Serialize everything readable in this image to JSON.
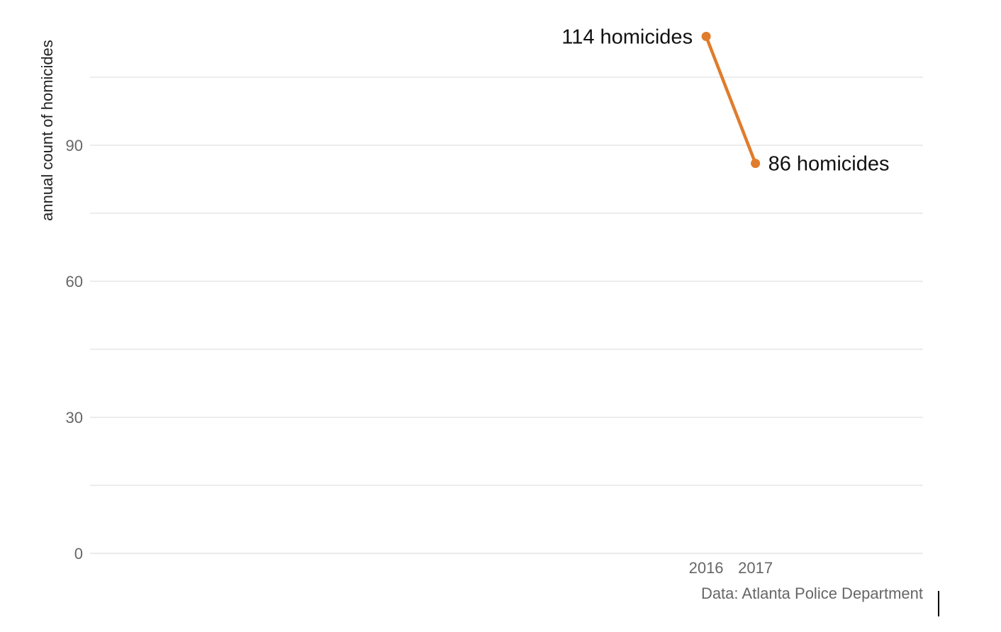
{
  "chart_data": {
    "type": "line",
    "ylabel": "annual count of homicides",
    "xlabel": "",
    "ylim": [
      0,
      120
    ],
    "yticks": [
      0,
      30,
      60,
      90
    ],
    "y_minor_gridlines": [
      15,
      45,
      75,
      105
    ],
    "x_domain": [
      2003.5,
      2020.4
    ],
    "xticks": [
      "2016",
      "2017"
    ],
    "grid": true,
    "series": [
      {
        "color": "#e07c2c",
        "points": [
          {
            "x": 2016,
            "y": 114,
            "label": "114 homicides"
          },
          {
            "x": 2017,
            "y": 86,
            "label": "86 homicides"
          }
        ]
      }
    ],
    "source": "Data: Atlanta Police Department"
  }
}
